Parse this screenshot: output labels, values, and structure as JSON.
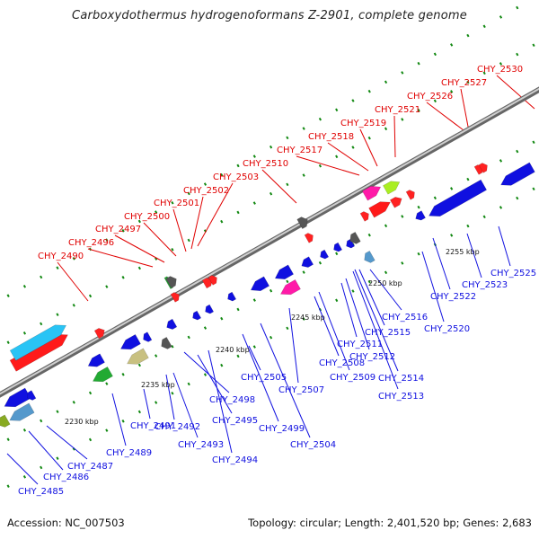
{
  "title": "Carboxydothermus hydrogenoformans Z-2901, complete genome",
  "footer": {
    "accession": "Accession: NC_007503",
    "summary": "Topology: circular; Length: 2,401,520 bp; Genes: 2,683"
  },
  "colors": {
    "forward_label": "#e00000",
    "reverse_label": "#1010e0",
    "tick": "#118811",
    "backbone": "#8a8a8a"
  },
  "scale_labels": [
    "2230 kbp",
    "2235 kbp",
    "2240 kbp",
    "2245 kbp",
    "2250 kbp",
    "2255 kbp"
  ],
  "forward_genes": [
    "CHY_2490",
    "CHY_2496",
    "CHY_2497",
    "CHY_2500",
    "CHY_2501",
    "CHY_2502",
    "CHY_2503",
    "CHY_2510",
    "CHY_2517",
    "CHY_2518",
    "CHY_2519",
    "CHY_2521",
    "CHY_2526",
    "CHY_2527",
    "CHY_2530"
  ],
  "reverse_genes": [
    "CHY_2485",
    "CHY_2486",
    "CHY_2487",
    "CHY_2489",
    "CHY_2491",
    "CHY_2492",
    "CHY_2493",
    "CHY_2494",
    "CHY_2495",
    "CHY_2498",
    "CHY_2499",
    "CHY_2504",
    "CHY_2505",
    "CHY_2507",
    "CHY_2508",
    "CHY_2509",
    "CHY_2511",
    "CHY_2512",
    "CHY_2513",
    "CHY_2514",
    "CHY_2515",
    "CHY_2516",
    "CHY_2520",
    "CHY_2522",
    "CHY_2523",
    "CHY_2525"
  ]
}
